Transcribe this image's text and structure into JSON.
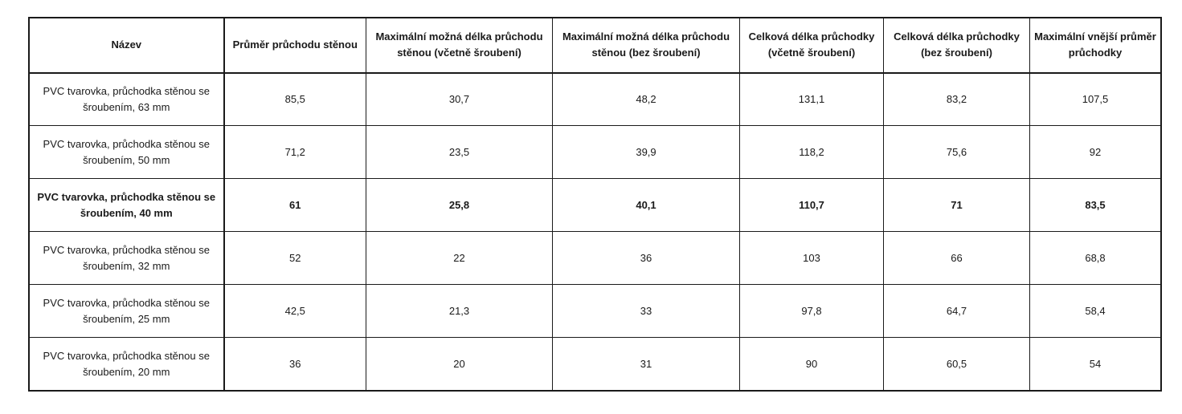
{
  "table": {
    "headers": [
      "Název",
      "Průměr průchodu stěnou",
      "Maximální možná délka průchodu stěnou (včetně šroubení)",
      "Maximální možná délka průchodu stěnou (bez šroubení)",
      "Celková délka průchodky (včetně šroubení)",
      "Celková délka průchodky (bez šroubení)",
      "Maximální vnější průměr průchodky"
    ],
    "rows": [
      [
        "PVC tvarovka, průchodka stěnou se šroubením, 63 mm",
        "85,5",
        "30,7",
        "48,2",
        "131,1",
        "83,2",
        "107,5"
      ],
      [
        "PVC tvarovka, průchodka stěnou se šroubením, 50 mm",
        "71,2",
        "23,5",
        "39,9",
        "118,2",
        "75,6",
        "92"
      ],
      [
        "PVC tvarovka, průchodka stěnou se šroubením, 40 mm",
        "61",
        "25,8",
        "40,1",
        "110,7",
        "71",
        "83,5"
      ],
      [
        "PVC tvarovka, průchodka stěnou se šroubením, 32 mm",
        "52",
        "22",
        "36",
        "103",
        "66",
        "68,8"
      ],
      [
        "PVC tvarovka, průchodka stěnou se šroubením, 25 mm",
        "42,5",
        "21,3",
        "33",
        "97,8",
        "64,7",
        "58,4"
      ],
      [
        "PVC tvarovka, průchodka stěnou se šroubením, 20 mm",
        "36",
        "20",
        "31",
        "90",
        "60,5",
        "54"
      ]
    ],
    "highlighted_row_index": 2
  }
}
